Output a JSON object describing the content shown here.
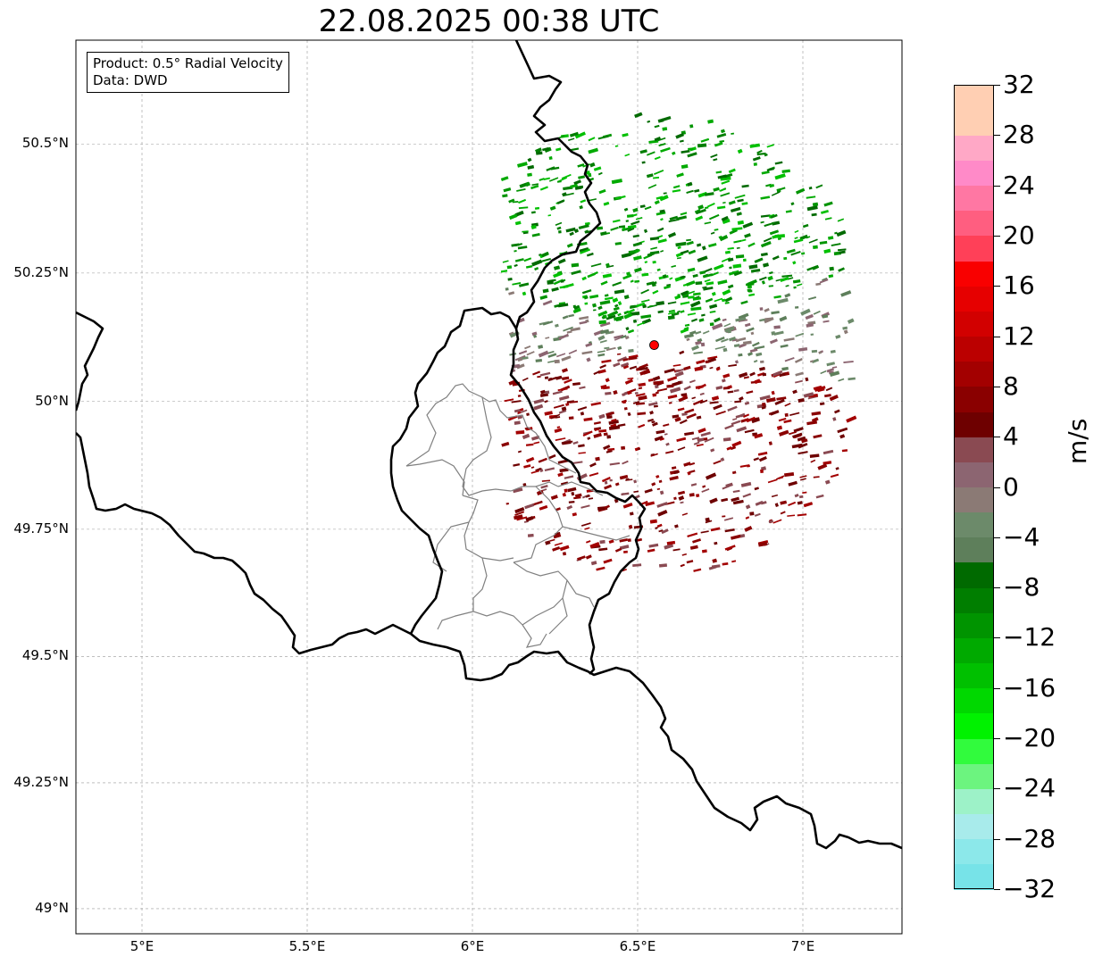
{
  "title": "22.08.2025 00:38 UTC",
  "info_box": {
    "product": "Product: 0.5° Radial Velocity",
    "data": "Data: DWD"
  },
  "map": {
    "lon_range": [
      4.8,
      7.3
    ],
    "lat_range": [
      48.95,
      50.7
    ],
    "lon_ticks": [
      {
        "value": 5.0,
        "label": "5°E"
      },
      {
        "value": 5.5,
        "label": "5.5°E"
      },
      {
        "value": 6.0,
        "label": "6°E"
      },
      {
        "value": 6.5,
        "label": "6.5°E"
      },
      {
        "value": 7.0,
        "label": "7°E"
      }
    ],
    "lat_ticks": [
      {
        "value": 50.5,
        "label": "50.5°N"
      },
      {
        "value": 50.25,
        "label": "50.25°N"
      },
      {
        "value": 50.0,
        "label": "50°N"
      },
      {
        "value": 49.75,
        "label": "49.75°N"
      },
      {
        "value": 49.5,
        "label": "49.5°N"
      },
      {
        "value": 49.25,
        "label": "49.25°N"
      },
      {
        "value": 49.0,
        "label": "49°N"
      }
    ],
    "gridlines": true,
    "radar_site": {
      "lon": 6.55,
      "lat": 50.11,
      "color": "#ff0000"
    }
  },
  "colorbar": {
    "unit": "m/s",
    "min": -32,
    "max": 32,
    "tick_labels": [
      {
        "value": 32,
        "label": "32"
      },
      {
        "value": 28,
        "label": "28"
      },
      {
        "value": 24,
        "label": "24"
      },
      {
        "value": 20,
        "label": "20"
      },
      {
        "value": 16,
        "label": "16"
      },
      {
        "value": 12,
        "label": "12"
      },
      {
        "value": 8,
        "label": "8"
      },
      {
        "value": 4,
        "label": "4"
      },
      {
        "value": 0,
        "label": "0"
      },
      {
        "value": -4,
        "label": "−4"
      },
      {
        "value": -8,
        "label": "−8"
      },
      {
        "value": -12,
        "label": "−12"
      },
      {
        "value": -16,
        "label": "−16"
      },
      {
        "value": -20,
        "label": "−20"
      },
      {
        "value": -24,
        "label": "−24"
      },
      {
        "value": -28,
        "label": "−28"
      },
      {
        "value": -32,
        "label": "−32"
      }
    ],
    "colors_bottom_to_top": [
      "#77e3e8",
      "#8ce8ea",
      "#a8ebeb",
      "#9df2c8",
      "#6cf47f",
      "#31fb3d",
      "#00f200",
      "#00d800",
      "#00c000",
      "#00aa00",
      "#009400",
      "#007e00",
      "#006a00",
      "#5e7f5b",
      "#6c8a6a",
      "#8b7a75",
      "#8c6571",
      "#8a4a52",
      "#6e0000",
      "#8a0000",
      "#a30000",
      "#bb0000",
      "#d20000",
      "#e60000",
      "#f90000",
      "#ff4058",
      "#ff5e80",
      "#ff77a3",
      "#ff8ac8",
      "#ffa8c6",
      "#ffcfb3",
      "#ffcfb3"
    ]
  }
}
